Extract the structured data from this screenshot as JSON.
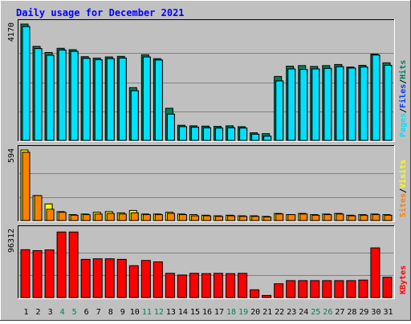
{
  "title": "Daily usage for December 2021",
  "colors": {
    "background": "#c0c0c0",
    "title": "#0000ff",
    "hits": "#00805c",
    "files": "#0040ff",
    "pages": "#00e0ff",
    "visits": "#ffff00",
    "sites": "#ff8000",
    "kbytes": "#ff0000",
    "weekend": "#00805c",
    "weekday": "#000000"
  },
  "chart_data": [
    {
      "type": "bar",
      "panel": "hits_files_pages",
      "y_max_label": "4170",
      "ylim": [
        0,
        4170
      ],
      "legend": [
        "Pages",
        "Files",
        "Hits"
      ],
      "categories": [
        "1",
        "2",
        "3",
        "4",
        "5",
        "6",
        "7",
        "8",
        "9",
        "10",
        "11",
        "12",
        "13",
        "14",
        "15",
        "16",
        "17",
        "18",
        "19",
        "20",
        "21",
        "22",
        "23",
        "24",
        "25",
        "26",
        "27",
        "28",
        "29",
        "30",
        "31"
      ],
      "series": [
        {
          "name": "Hits",
          "values": [
            4170,
            3370,
            3150,
            3300,
            3250,
            3000,
            2950,
            2990,
            3010,
            1890,
            3070,
            2930,
            1150,
            540,
            520,
            510,
            500,
            520,
            490,
            270,
            240,
            2290,
            2660,
            2680,
            2650,
            2680,
            2720,
            2630,
            2690,
            3090,
            2780
          ]
        },
        {
          "name": "Files",
          "values": [
            4080,
            3290,
            3050,
            3240,
            3190,
            2940,
            2890,
            2930,
            2950,
            1780,
            2990,
            2880,
            940,
            490,
            470,
            450,
            440,
            450,
            440,
            220,
            150,
            2130,
            2560,
            2540,
            2560,
            2580,
            2640,
            2590,
            2630,
            3060,
            2690
          ]
        },
        {
          "name": "Pages",
          "values": [
            4080,
            3290,
            3050,
            3240,
            3190,
            2940,
            2890,
            2930,
            2950,
            1780,
            2990,
            2880,
            940,
            490,
            470,
            450,
            440,
            450,
            440,
            220,
            150,
            2130,
            2560,
            2540,
            2560,
            2580,
            2640,
            2590,
            2630,
            3060,
            2690
          ]
        }
      ]
    },
    {
      "type": "bar",
      "panel": "visits_sites",
      "y_max_label": "594",
      "ylim": [
        0,
        594
      ],
      "legend": [
        "Sites",
        "Visits"
      ],
      "categories": [
        "1",
        "2",
        "3",
        "4",
        "5",
        "6",
        "7",
        "8",
        "9",
        "10",
        "11",
        "12",
        "13",
        "14",
        "15",
        "16",
        "17",
        "18",
        "19",
        "20",
        "21",
        "22",
        "23",
        "24",
        "25",
        "26",
        "27",
        "28",
        "29",
        "30",
        "31"
      ],
      "series": [
        {
          "name": "Visits",
          "values": [
            594,
            210,
            140,
            75,
            50,
            55,
            70,
            75,
            65,
            85,
            55,
            55,
            70,
            55,
            50,
            45,
            40,
            45,
            40,
            40,
            35,
            60,
            50,
            60,
            50,
            55,
            60,
            45,
            50,
            55,
            50
          ]
        },
        {
          "name": "Sites",
          "values": [
            575,
            210,
            95,
            70,
            45,
            50,
            55,
            60,
            55,
            65,
            50,
            50,
            60,
            50,
            40,
            40,
            35,
            40,
            35,
            35,
            30,
            55,
            50,
            55,
            45,
            50,
            55,
            40,
            45,
            50,
            45
          ]
        }
      ]
    },
    {
      "type": "bar",
      "panel": "kbytes",
      "y_max_label": "96312",
      "ylim": [
        0,
        96312
      ],
      "legend": [
        "KBytes"
      ],
      "categories": [
        "1",
        "2",
        "3",
        "4",
        "5",
        "6",
        "7",
        "8",
        "9",
        "10",
        "11",
        "12",
        "13",
        "14",
        "15",
        "16",
        "17",
        "18",
        "19",
        "20",
        "21",
        "22",
        "23",
        "24",
        "25",
        "26",
        "27",
        "28",
        "29",
        "30",
        "31"
      ],
      "series": [
        {
          "name": "KBytes",
          "values": [
            68400,
            67000,
            68100,
            93700,
            93700,
            54600,
            55400,
            55400,
            54600,
            45500,
            53000,
            51000,
            34600,
            32200,
            34600,
            34200,
            34600,
            34200,
            34600,
            11100,
            3000,
            19700,
            24200,
            24200,
            24200,
            24200,
            24200,
            24200,
            25000,
            71000,
            29000
          ]
        }
      ]
    }
  ],
  "weekend_days": [
    "4",
    "5",
    "11",
    "12",
    "18",
    "19",
    "25",
    "26"
  ]
}
